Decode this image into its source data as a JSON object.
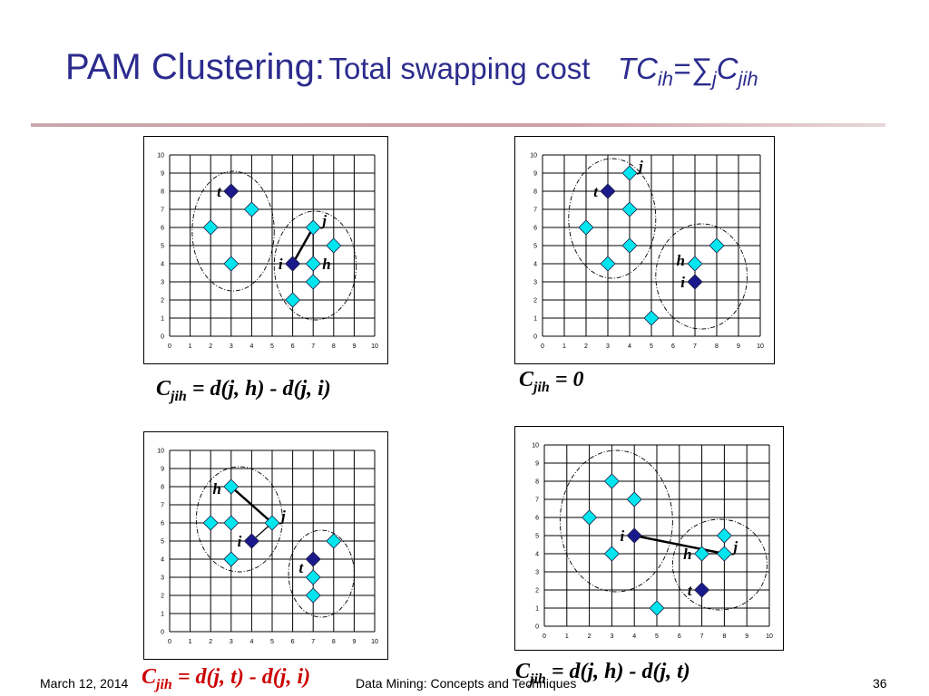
{
  "title": {
    "main": "PAM Clustering:",
    "sub": "Total swapping cost",
    "formula_tc": "TC",
    "formula_ih": "ih",
    "formula_eq": "=",
    "formula_sigma": "∑",
    "formula_j": "j",
    "formula_c": "C",
    "formula_jih": "jih"
  },
  "footer": {
    "date": "March 12, 2014",
    "course": "Data Mining: Concepts and Techniques",
    "page": "36"
  },
  "colors": {
    "title": "#2c2c8e",
    "light_point": "#00e5ee",
    "dark_point": "#1a1a8c",
    "red_text": "#cc0000"
  },
  "formulas": [
    {
      "c": "C",
      "sub": "jih",
      "rest": " = d(j, h) - d(j, i)",
      "color": "black"
    },
    {
      "c": "C",
      "sub": "jih",
      "rest": " = 0",
      "color": "black"
    },
    {
      "c": "C",
      "sub": "jih",
      "rest": " = d(j, t) - d(j, i)",
      "color": "red"
    },
    {
      "c": "C",
      "sub": "jih",
      "rest": " = d(j, h) - d(j, t)",
      "color": "black"
    }
  ],
  "plots": [
    {
      "id": "top-left",
      "axis": {
        "min": 0,
        "max": 10,
        "ticks": [
          "0",
          "1",
          "2",
          "3",
          "4",
          "5",
          "6",
          "7",
          "8",
          "9",
          "10"
        ]
      },
      "points": [
        {
          "x": 3,
          "y": 8,
          "kind": "medoid",
          "label": "t"
        },
        {
          "x": 4,
          "y": 7,
          "kind": "object"
        },
        {
          "x": 2,
          "y": 6,
          "kind": "object"
        },
        {
          "x": 3,
          "y": 4,
          "kind": "object"
        },
        {
          "x": 7,
          "y": 6,
          "kind": "object",
          "label": "j"
        },
        {
          "x": 8,
          "y": 5,
          "kind": "object"
        },
        {
          "x": 6,
          "y": 4,
          "kind": "medoid",
          "label": "i"
        },
        {
          "x": 7,
          "y": 4,
          "kind": "object",
          "label": "h"
        },
        {
          "x": 7,
          "y": 3,
          "kind": "object"
        },
        {
          "x": 6,
          "y": 2,
          "kind": "object"
        }
      ],
      "lines": [
        {
          "from": [
            6,
            4
          ],
          "to": [
            7,
            6
          ],
          "weight": "heavy"
        },
        {
          "from": [
            7,
            6
          ],
          "to": [
            7,
            4
          ],
          "weight": "light"
        }
      ],
      "clusters": [
        {
          "cx": 3.1,
          "cy": 5.8,
          "rx": 2.0,
          "ry": 3.3
        },
        {
          "cx": 7.1,
          "cy": 3.9,
          "rx": 2.0,
          "ry": 3.0
        }
      ]
    },
    {
      "id": "top-right",
      "axis": {
        "min": 0,
        "max": 10,
        "ticks": [
          "0",
          "1",
          "2",
          "3",
          "4",
          "5",
          "6",
          "7",
          "8",
          "9",
          "10"
        ]
      },
      "points": [
        {
          "x": 4,
          "y": 9,
          "kind": "object",
          "label": "j"
        },
        {
          "x": 3,
          "y": 8,
          "kind": "medoid",
          "label": "t"
        },
        {
          "x": 4,
          "y": 7,
          "kind": "object"
        },
        {
          "x": 2,
          "y": 6,
          "kind": "object"
        },
        {
          "x": 4,
          "y": 5,
          "kind": "object"
        },
        {
          "x": 3,
          "y": 4,
          "kind": "object"
        },
        {
          "x": 8,
          "y": 5,
          "kind": "object"
        },
        {
          "x": 7,
          "y": 4,
          "kind": "object",
          "label": "h"
        },
        {
          "x": 7,
          "y": 3,
          "kind": "medoid",
          "label": "i"
        },
        {
          "x": 5,
          "y": 1,
          "kind": "object"
        }
      ],
      "lines": [],
      "clusters": [
        {
          "cx": 3.2,
          "cy": 6.5,
          "rx": 2.0,
          "ry": 3.3
        },
        {
          "cx": 7.3,
          "cy": 3.3,
          "rx": 2.1,
          "ry": 2.9
        }
      ]
    },
    {
      "id": "bottom-left",
      "axis": {
        "min": 0,
        "max": 10,
        "ticks": [
          "0",
          "1",
          "2",
          "3",
          "4",
          "5",
          "6",
          "7",
          "8",
          "9",
          "10"
        ]
      },
      "points": [
        {
          "x": 3,
          "y": 8,
          "kind": "object",
          "label": "h"
        },
        {
          "x": 2,
          "y": 6,
          "kind": "object"
        },
        {
          "x": 3,
          "y": 6,
          "kind": "object"
        },
        {
          "x": 5,
          "y": 6,
          "kind": "object",
          "label": "j"
        },
        {
          "x": 4,
          "y": 5,
          "kind": "medoid",
          "label": "i"
        },
        {
          "x": 3,
          "y": 4,
          "kind": "object"
        },
        {
          "x": 7,
          "y": 4,
          "kind": "medoid",
          "label": "t"
        },
        {
          "x": 8,
          "y": 5,
          "kind": "object"
        },
        {
          "x": 7,
          "y": 3,
          "kind": "object"
        },
        {
          "x": 7,
          "y": 2,
          "kind": "object"
        }
      ],
      "lines": [
        {
          "from": [
            3,
            8
          ],
          "to": [
            5,
            6
          ],
          "weight": "heavy"
        },
        {
          "from": [
            5,
            6
          ],
          "to": [
            4,
            5
          ],
          "weight": "light"
        }
      ],
      "clusters": [
        {
          "cx": 3.4,
          "cy": 6.2,
          "rx": 2.1,
          "ry": 2.9
        },
        {
          "cx": 7.4,
          "cy": 3.2,
          "rx": 1.6,
          "ry": 2.4
        }
      ]
    },
    {
      "id": "bottom-right",
      "axis": {
        "min": 0,
        "max": 10,
        "ticks": [
          "0",
          "1",
          "2",
          "3",
          "4",
          "5",
          "6",
          "7",
          "8",
          "9",
          "10"
        ]
      },
      "points": [
        {
          "x": 3,
          "y": 8,
          "kind": "object"
        },
        {
          "x": 4,
          "y": 7,
          "kind": "object"
        },
        {
          "x": 2,
          "y": 6,
          "kind": "object"
        },
        {
          "x": 4,
          "y": 5,
          "kind": "medoid",
          "label": "i"
        },
        {
          "x": 3,
          "y": 4,
          "kind": "object"
        },
        {
          "x": 8,
          "y": 5,
          "kind": "object"
        },
        {
          "x": 7,
          "y": 4,
          "kind": "object",
          "label": "h"
        },
        {
          "x": 8,
          "y": 4,
          "kind": "object",
          "label": "j"
        },
        {
          "x": 7,
          "y": 2,
          "kind": "medoid",
          "label": "t"
        },
        {
          "x": 5,
          "y": 1,
          "kind": "object"
        }
      ],
      "lines": [
        {
          "from": [
            4,
            5
          ],
          "to": [
            8,
            4
          ],
          "weight": "heavy"
        },
        {
          "from": [
            7,
            4
          ],
          "to": [
            8,
            4
          ],
          "weight": "light"
        }
      ],
      "clusters": [
        {
          "cx": 3.2,
          "cy": 5.8,
          "rx": 2.5,
          "ry": 3.9
        },
        {
          "cx": 7.8,
          "cy": 3.4,
          "rx": 2.1,
          "ry": 2.5
        }
      ]
    }
  ]
}
